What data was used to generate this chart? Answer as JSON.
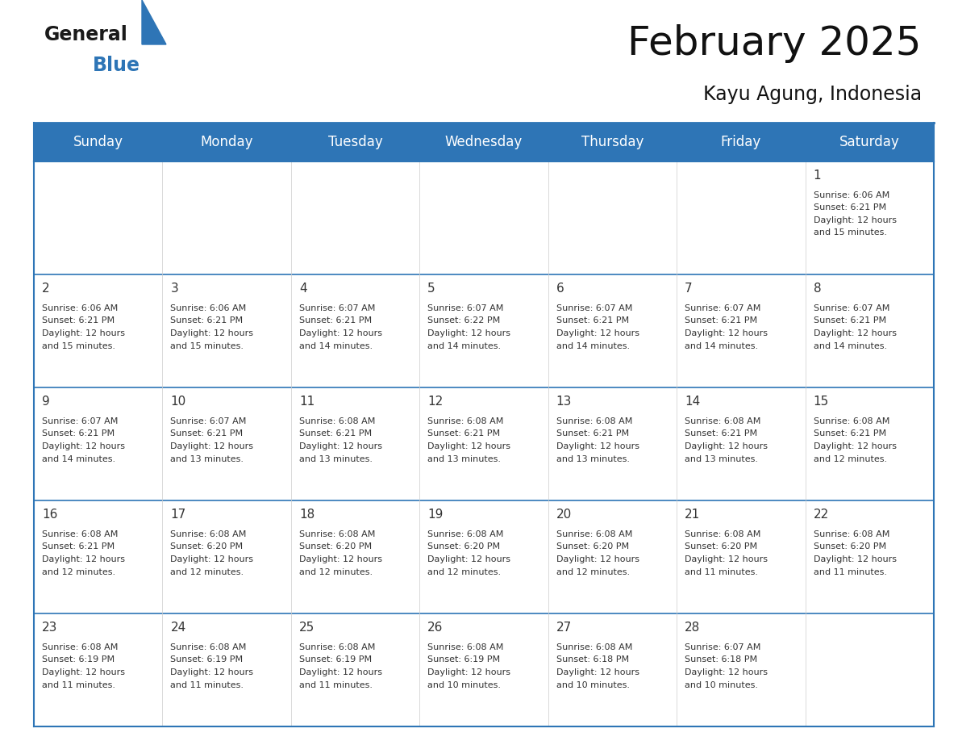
{
  "title": "February 2025",
  "subtitle": "Kayu Agung, Indonesia",
  "header_color": "#2e75b6",
  "header_text_color": "#ffffff",
  "cell_bg_color": "#ffffff",
  "day_headers": [
    "Sunday",
    "Monday",
    "Tuesday",
    "Wednesday",
    "Thursday",
    "Friday",
    "Saturday"
  ],
  "days": [
    {
      "day": 1,
      "col": 6,
      "row": 0,
      "sunrise": "6:06 AM",
      "sunset": "6:21 PM",
      "daylight": "12 hours and 15 minutes."
    },
    {
      "day": 2,
      "col": 0,
      "row": 1,
      "sunrise": "6:06 AM",
      "sunset": "6:21 PM",
      "daylight": "12 hours and 15 minutes."
    },
    {
      "day": 3,
      "col": 1,
      "row": 1,
      "sunrise": "6:06 AM",
      "sunset": "6:21 PM",
      "daylight": "12 hours and 15 minutes."
    },
    {
      "day": 4,
      "col": 2,
      "row": 1,
      "sunrise": "6:07 AM",
      "sunset": "6:21 PM",
      "daylight": "12 hours and 14 minutes."
    },
    {
      "day": 5,
      "col": 3,
      "row": 1,
      "sunrise": "6:07 AM",
      "sunset": "6:22 PM",
      "daylight": "12 hours and 14 minutes."
    },
    {
      "day": 6,
      "col": 4,
      "row": 1,
      "sunrise": "6:07 AM",
      "sunset": "6:21 PM",
      "daylight": "12 hours and 14 minutes."
    },
    {
      "day": 7,
      "col": 5,
      "row": 1,
      "sunrise": "6:07 AM",
      "sunset": "6:21 PM",
      "daylight": "12 hours and 14 minutes."
    },
    {
      "day": 8,
      "col": 6,
      "row": 1,
      "sunrise": "6:07 AM",
      "sunset": "6:21 PM",
      "daylight": "12 hours and 14 minutes."
    },
    {
      "day": 9,
      "col": 0,
      "row": 2,
      "sunrise": "6:07 AM",
      "sunset": "6:21 PM",
      "daylight": "12 hours and 14 minutes."
    },
    {
      "day": 10,
      "col": 1,
      "row": 2,
      "sunrise": "6:07 AM",
      "sunset": "6:21 PM",
      "daylight": "12 hours and 13 minutes."
    },
    {
      "day": 11,
      "col": 2,
      "row": 2,
      "sunrise": "6:08 AM",
      "sunset": "6:21 PM",
      "daylight": "12 hours and 13 minutes."
    },
    {
      "day": 12,
      "col": 3,
      "row": 2,
      "sunrise": "6:08 AM",
      "sunset": "6:21 PM",
      "daylight": "12 hours and 13 minutes."
    },
    {
      "day": 13,
      "col": 4,
      "row": 2,
      "sunrise": "6:08 AM",
      "sunset": "6:21 PM",
      "daylight": "12 hours and 13 minutes."
    },
    {
      "day": 14,
      "col": 5,
      "row": 2,
      "sunrise": "6:08 AM",
      "sunset": "6:21 PM",
      "daylight": "12 hours and 13 minutes."
    },
    {
      "day": 15,
      "col": 6,
      "row": 2,
      "sunrise": "6:08 AM",
      "sunset": "6:21 PM",
      "daylight": "12 hours and 12 minutes."
    },
    {
      "day": 16,
      "col": 0,
      "row": 3,
      "sunrise": "6:08 AM",
      "sunset": "6:21 PM",
      "daylight": "12 hours and 12 minutes."
    },
    {
      "day": 17,
      "col": 1,
      "row": 3,
      "sunrise": "6:08 AM",
      "sunset": "6:20 PM",
      "daylight": "12 hours and 12 minutes."
    },
    {
      "day": 18,
      "col": 2,
      "row": 3,
      "sunrise": "6:08 AM",
      "sunset": "6:20 PM",
      "daylight": "12 hours and 12 minutes."
    },
    {
      "day": 19,
      "col": 3,
      "row": 3,
      "sunrise": "6:08 AM",
      "sunset": "6:20 PM",
      "daylight": "12 hours and 12 minutes."
    },
    {
      "day": 20,
      "col": 4,
      "row": 3,
      "sunrise": "6:08 AM",
      "sunset": "6:20 PM",
      "daylight": "12 hours and 12 minutes."
    },
    {
      "day": 21,
      "col": 5,
      "row": 3,
      "sunrise": "6:08 AM",
      "sunset": "6:20 PM",
      "daylight": "12 hours and 11 minutes."
    },
    {
      "day": 22,
      "col": 6,
      "row": 3,
      "sunrise": "6:08 AM",
      "sunset": "6:20 PM",
      "daylight": "12 hours and 11 minutes."
    },
    {
      "day": 23,
      "col": 0,
      "row": 4,
      "sunrise": "6:08 AM",
      "sunset": "6:19 PM",
      "daylight": "12 hours and 11 minutes."
    },
    {
      "day": 24,
      "col": 1,
      "row": 4,
      "sunrise": "6:08 AM",
      "sunset": "6:19 PM",
      "daylight": "12 hours and 11 minutes."
    },
    {
      "day": 25,
      "col": 2,
      "row": 4,
      "sunrise": "6:08 AM",
      "sunset": "6:19 PM",
      "daylight": "12 hours and 11 minutes."
    },
    {
      "day": 26,
      "col": 3,
      "row": 4,
      "sunrise": "6:08 AM",
      "sunset": "6:19 PM",
      "daylight": "12 hours and 10 minutes."
    },
    {
      "day": 27,
      "col": 4,
      "row": 4,
      "sunrise": "6:08 AM",
      "sunset": "6:18 PM",
      "daylight": "12 hours and 10 minutes."
    },
    {
      "day": 28,
      "col": 5,
      "row": 4,
      "sunrise": "6:07 AM",
      "sunset": "6:18 PM",
      "daylight": "12 hours and 10 minutes."
    }
  ],
  "n_rows": 5,
  "n_cols": 7,
  "border_color": "#2e75b6",
  "text_color": "#333333",
  "divider_color": "#2e75b6",
  "logo_color_general": "#1a1a1a",
  "logo_color_blue": "#2e75b6",
  "logo_triangle_color": "#2e75b6",
  "title_fontsize": 36,
  "subtitle_fontsize": 17,
  "header_fontsize": 12,
  "day_num_fontsize": 11,
  "cell_text_fontsize": 8
}
